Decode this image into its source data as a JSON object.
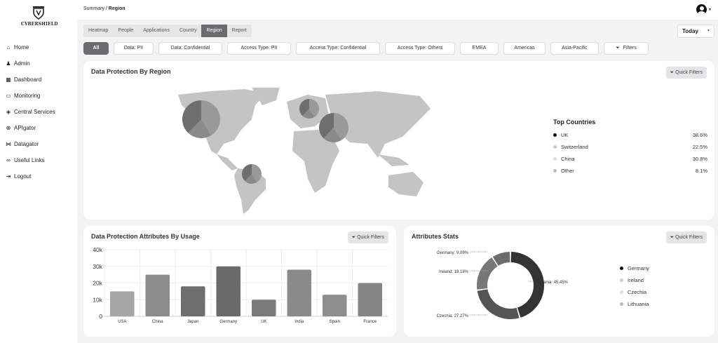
{
  "brand": {
    "name": "CYBERSHIELD"
  },
  "sidebar": {
    "items": [
      {
        "label": "Home",
        "icon": "home-icon",
        "glyph": "⌂"
      },
      {
        "label": "Admin",
        "icon": "user-icon",
        "glyph": "♟"
      },
      {
        "label": "Dashboard",
        "icon": "dashboard-icon",
        "glyph": "▦"
      },
      {
        "label": "Monitoring",
        "icon": "monitor-icon",
        "glyph": "▭"
      },
      {
        "label": "Central Services",
        "icon": "stack-icon",
        "glyph": "◈"
      },
      {
        "label": "APIgator",
        "icon": "api-icon",
        "glyph": "⊕"
      },
      {
        "label": "Datagator",
        "icon": "signal-icon",
        "glyph": "⋈"
      },
      {
        "label": "Useful Links",
        "icon": "link-icon",
        "glyph": "∞"
      },
      {
        "label": "Logout",
        "icon": "logout-icon",
        "glyph": "⇥"
      }
    ]
  },
  "header": {
    "breadcrumb_parent": "Summary",
    "breadcrumb_sep": " / ",
    "breadcrumb_current": "Region"
  },
  "tabs": [
    {
      "label": "Heatmap"
    },
    {
      "label": "People"
    },
    {
      "label": "Applications"
    },
    {
      "label": "Country"
    },
    {
      "label": "Region",
      "active": true
    },
    {
      "label": "Report"
    }
  ],
  "date_select": {
    "value": "Today"
  },
  "filters": [
    {
      "label": "All",
      "active": true,
      "w": 36
    },
    {
      "label": "Data: PII",
      "w": 57
    },
    {
      "label": "Data: Confidential",
      "w": 91
    },
    {
      "label": "Access Type: PII",
      "w": 91
    },
    {
      "label": "Access Type: Confidential",
      "w": 120
    },
    {
      "label": "Access Type: Others",
      "w": 100
    },
    {
      "label": "EMEA",
      "w": 55
    },
    {
      "label": "Americas",
      "w": 60
    },
    {
      "label": "Asia-Pacific",
      "w": 69
    },
    {
      "label": "Filters",
      "icon": "filter-icon",
      "w": 64
    }
  ],
  "quick_filters_label": "Quick Filters",
  "map_card": {
    "title": "Data Protection By Region",
    "top_countries_title": "Top Countries",
    "top_countries": [
      {
        "name": "UK",
        "value": "38.6%",
        "color": "#111111"
      },
      {
        "name": "Switzerland",
        "value": "22.5%",
        "color": "#cccccc"
      },
      {
        "name": "China",
        "value": "30.8%",
        "color": "#dddddd"
      },
      {
        "name": "Other",
        "value": "8.1%",
        "color": "#bbbbbb"
      }
    ]
  },
  "chart_data": [
    {
      "type": "bar",
      "title": "Data Protection Attributes By Usage",
      "categories": [
        "USA",
        "China",
        "Japan",
        "Germany",
        "UK",
        "India",
        "Spain",
        "France"
      ],
      "values": [
        15000,
        25000,
        18000,
        30000,
        10000,
        28000,
        13000,
        20000
      ],
      "colors": [
        "#a6a6a6",
        "#8c8c8c",
        "#6e6e6e",
        "#6a6a6a",
        "#7a7a7a",
        "#8a8a8a",
        "#8e8e8e",
        "#858585"
      ],
      "ylim": [
        0,
        40000
      ],
      "yticks": [
        "0",
        "10k",
        "20k",
        "30k",
        "40k"
      ],
      "grid": true
    },
    {
      "type": "pie",
      "title": "Attributes Stats",
      "labels": [
        "Germany",
        "Ireland",
        "Czechia",
        "Lithuania"
      ],
      "values": [
        9.09,
        18.18,
        27.27,
        45.45
      ],
      "data_labels": [
        "Germany: 9.09%",
        "Ireland: 18.18%",
        "Czechia: 27.27%",
        "Lithuania: 45.45%"
      ],
      "colors": [
        "#6c6c6c",
        "#777777",
        "#555555",
        "#333333"
      ],
      "legend_colors": [
        "#111111",
        "#cccccc",
        "#dddddd",
        "#bbbbbb"
      ],
      "legend": "right",
      "donut": true
    }
  ]
}
